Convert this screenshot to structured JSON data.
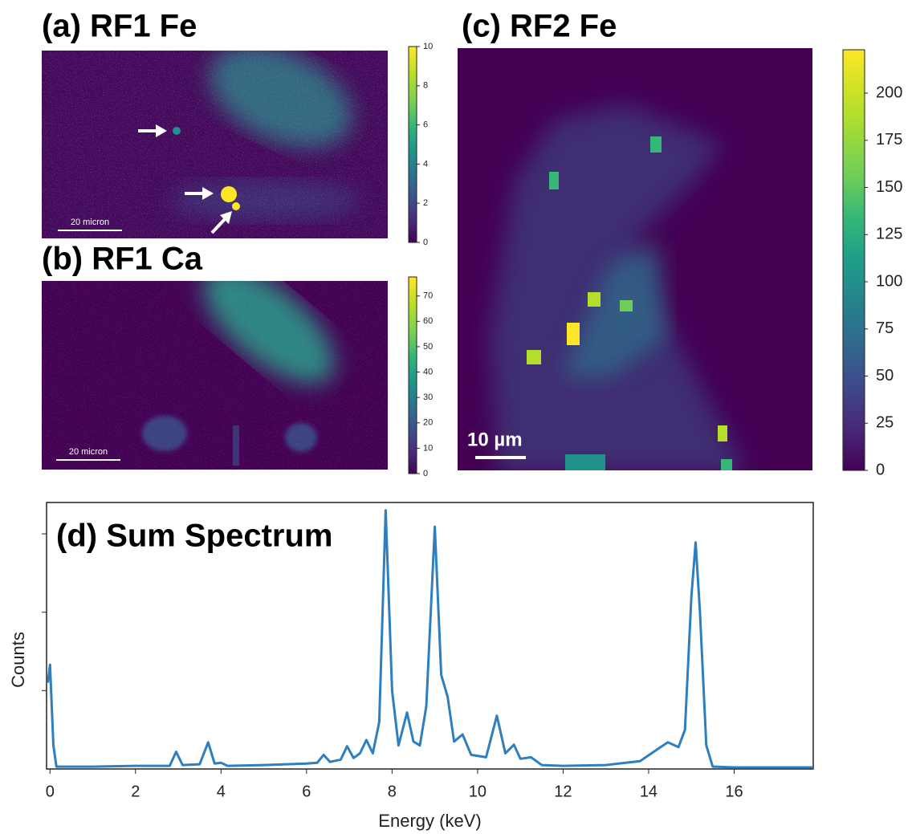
{
  "chart_data": [
    {
      "type": "heatmap",
      "title": "(a) RF1 Fe",
      "scale_label": "20 micron",
      "zlim": [
        0,
        10
      ],
      "zticks": [
        0,
        2,
        4,
        6,
        8,
        10
      ]
    },
    {
      "type": "heatmap",
      "title": "(b) RF1 Ca",
      "scale_label": "20 micron",
      "zlim": [
        0,
        77.5
      ],
      "zticks": [
        0,
        10,
        20,
        30,
        40,
        50,
        60,
        70
      ]
    },
    {
      "type": "heatmap",
      "title": "(c) RF2 Fe",
      "scale_label": "10 µm",
      "zlim": [
        0,
        223
      ],
      "zticks": [
        0,
        25,
        50,
        75,
        100,
        125,
        150,
        175,
        200
      ]
    },
    {
      "type": "line",
      "title": "(d) Sum Spectrum",
      "xlabel": "Energy (keV)",
      "ylabel": "Counts",
      "color": "#2e7fbf",
      "x": [
        -0.05,
        0,
        0.08,
        0.15,
        1,
        2,
        2.8,
        2.95,
        3.1,
        3.5,
        3.7,
        3.85,
        4.0,
        4.15,
        5,
        6,
        6.25,
        6.4,
        6.55,
        6.8,
        6.95,
        7.1,
        7.25,
        7.4,
        7.55,
        7.7,
        7.85,
        8.0,
        8.15,
        8.35,
        8.5,
        8.65,
        8.8,
        9.0,
        9.15,
        9.3,
        9.45,
        9.65,
        9.85,
        10.2,
        10.45,
        10.65,
        10.85,
        11.0,
        11.25,
        11.5,
        12,
        13,
        13.8,
        14.2,
        14.45,
        14.7,
        14.85,
        15.0,
        15.1,
        15.2,
        15.35,
        15.5,
        16,
        17,
        17.85
      ],
      "values": [
        1.1,
        1.33,
        0.3,
        0.03,
        0.03,
        0.04,
        0.04,
        0.22,
        0.05,
        0.06,
        0.34,
        0.07,
        0.08,
        0.04,
        0.05,
        0.07,
        0.08,
        0.18,
        0.09,
        0.12,
        0.29,
        0.14,
        0.2,
        0.37,
        0.2,
        0.6,
        3.3,
        1.0,
        0.3,
        0.72,
        0.35,
        0.3,
        0.8,
        3.09,
        1.2,
        0.92,
        0.35,
        0.44,
        0.18,
        0.15,
        0.68,
        0.2,
        0.31,
        0.13,
        0.15,
        0.05,
        0.04,
        0.05,
        0.1,
        0.25,
        0.34,
        0.28,
        0.5,
        2.2,
        2.89,
        2.0,
        0.3,
        0.03,
        0.02,
        0.02,
        0.02
      ],
      "xlim": [
        -0.08,
        17.85
      ],
      "xticks": [
        0,
        2,
        4,
        6,
        8,
        10,
        12,
        14,
        16
      ],
      "ylim": [
        0,
        3.4
      ],
      "yticks": [
        1,
        2,
        3
      ]
    }
  ]
}
